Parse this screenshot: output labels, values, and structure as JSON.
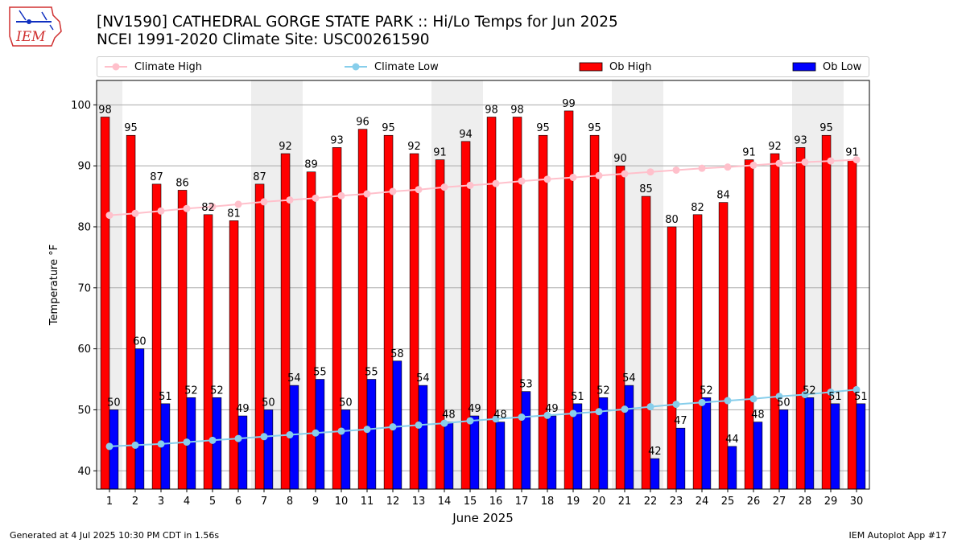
{
  "logo": {
    "text": "IEM"
  },
  "title": {
    "line1": "[NV1590] CATHEDRAL GORGE STATE PARK :: Hi/Lo Temps for Jun 2025",
    "line2": "NCEI 1991-2020 Climate Site: USC00261590"
  },
  "legend": {
    "climate_high": "Climate High",
    "climate_low": "Climate Low",
    "ob_high": "Ob High",
    "ob_low": "Ob Low"
  },
  "colors": {
    "ob_high": "#ff0000",
    "ob_low": "#0000ff",
    "climate_high": "#ffc0cb",
    "climate_low": "#87ceeb",
    "weekend_shade": "#eeeeee",
    "grid": "#aaaaaa"
  },
  "footer": {
    "generated": "Generated at 4 Jul 2025 10:30 PM CDT in 1.56s",
    "app": "IEM Autoplot App #17"
  },
  "chart_data": {
    "type": "bar",
    "xlabel": "June 2025",
    "ylabel": "Temperature °F",
    "ylim": [
      37,
      104
    ],
    "yticks": [
      40,
      50,
      60,
      70,
      80,
      90,
      100
    ],
    "grid": true,
    "legend_position": "top",
    "categories": [
      "1",
      "2",
      "3",
      "4",
      "5",
      "6",
      "7",
      "8",
      "9",
      "10",
      "11",
      "12",
      "13",
      "14",
      "15",
      "16",
      "17",
      "18",
      "19",
      "20",
      "21",
      "22",
      "23",
      "24",
      "25",
      "26",
      "27",
      "28",
      "29",
      "30"
    ],
    "weekend_days": [
      1,
      7,
      8,
      14,
      15,
      21,
      22,
      28,
      29
    ],
    "series": [
      {
        "name": "Ob High",
        "kind": "bar",
        "values": [
          98,
          95,
          87,
          86,
          82,
          81,
          87,
          92,
          89,
          93,
          96,
          95,
          92,
          91,
          94,
          98,
          98,
          95,
          99,
          95,
          90,
          85,
          80,
          82,
          84,
          91,
          92,
          93,
          95,
          91
        ]
      },
      {
        "name": "Ob Low",
        "kind": "bar",
        "values": [
          50,
          60,
          51,
          52,
          52,
          49,
          50,
          54,
          55,
          50,
          55,
          58,
          54,
          48,
          49,
          48,
          53,
          49,
          51,
          52,
          54,
          42,
          47,
          52,
          44,
          48,
          50,
          52,
          51,
          51
        ]
      },
      {
        "name": "Climate High",
        "kind": "line",
        "values": [
          81.9,
          82.2,
          82.6,
          83.0,
          83.3,
          83.7,
          84.1,
          84.4,
          84.7,
          85.1,
          85.4,
          85.8,
          86.1,
          86.5,
          86.8,
          87.1,
          87.5,
          87.8,
          88.1,
          88.4,
          88.7,
          89.0,
          89.3,
          89.6,
          89.8,
          90.1,
          90.4,
          90.6,
          90.8,
          91.0
        ]
      },
      {
        "name": "Climate Low",
        "kind": "line",
        "values": [
          44.0,
          44.2,
          44.4,
          44.7,
          45.0,
          45.3,
          45.6,
          45.9,
          46.2,
          46.5,
          46.8,
          47.2,
          47.5,
          47.8,
          48.2,
          48.5,
          48.8,
          49.1,
          49.4,
          49.7,
          50.1,
          50.5,
          50.9,
          51.2,
          51.5,
          51.8,
          52.2,
          52.5,
          52.9,
          53.3
        ]
      }
    ]
  }
}
